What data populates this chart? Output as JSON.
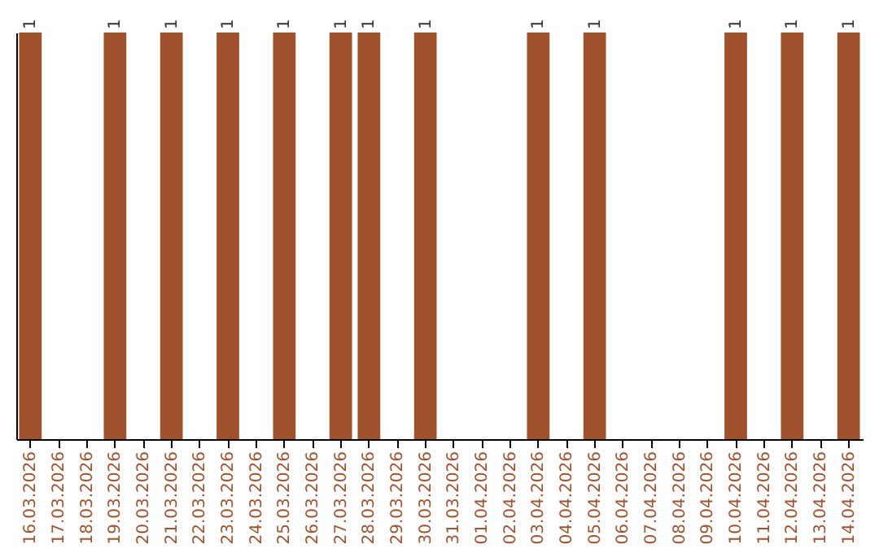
{
  "chart_data": {
    "type": "bar",
    "categories": [
      "16.03.2026",
      "17.03.2026",
      "18.03.2026",
      "19.03.2026",
      "20.03.2026",
      "21.03.2026",
      "22.03.2026",
      "23.03.2026",
      "24.03.2026",
      "25.03.2026",
      "26.03.2026",
      "27.03.2026",
      "28.03.2026",
      "29.03.2026",
      "30.03.2026",
      "31.03.2026",
      "01.04.2026",
      "02.04.2026",
      "03.04.2026",
      "04.04.2026",
      "05.04.2026",
      "06.04.2026",
      "07.04.2026",
      "08.04.2026",
      "09.04.2026",
      "10.04.2026",
      "11.04.2026",
      "12.04.2026",
      "13.04.2026",
      "14.04.2026"
    ],
    "values": [
      1,
      0,
      0,
      1,
      0,
      1,
      0,
      1,
      0,
      1,
      0,
      1,
      1,
      0,
      1,
      0,
      0,
      0,
      1,
      0,
      1,
      0,
      0,
      0,
      0,
      1,
      0,
      1,
      0,
      1
    ],
    "value_labels": [
      "1",
      null,
      null,
      "1",
      null,
      "1",
      null,
      "1",
      null,
      "1",
      null,
      "1",
      "1",
      null,
      "1",
      null,
      null,
      null,
      "1",
      null,
      "1",
      null,
      null,
      null,
      null,
      "1",
      null,
      "1",
      null,
      "1"
    ],
    "color": "#a0522d",
    "grid": false,
    "tick_labels": "x"
  }
}
